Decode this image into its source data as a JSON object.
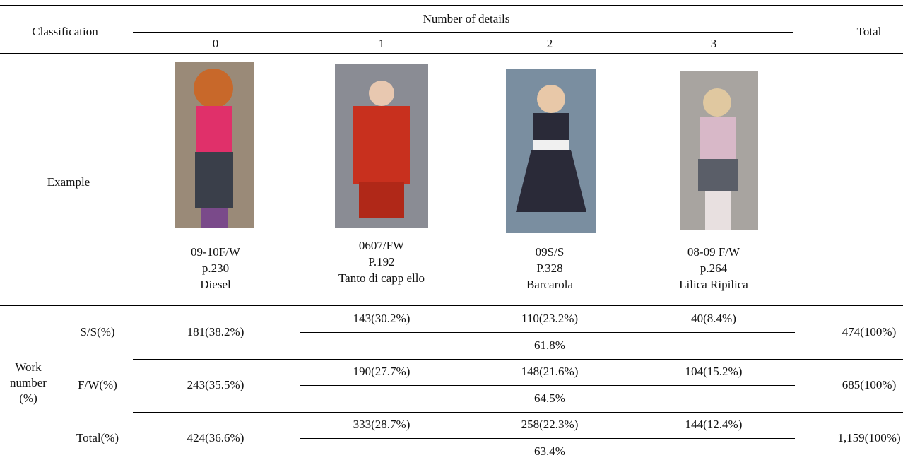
{
  "header": {
    "classification": "Classification",
    "number_of_details": "Number of details",
    "columns": [
      "0",
      "1",
      "2",
      "3"
    ],
    "total": "Total"
  },
  "example": {
    "label": "Example",
    "items": [
      {
        "lines": [
          "09-10F/W",
          "p.230",
          "Diesel"
        ]
      },
      {
        "lines": [
          "0607/FW",
          "P.192",
          "Tanto di capp ello"
        ]
      },
      {
        "lines": [
          "09S/S",
          "P.328",
          "Barcarola"
        ]
      },
      {
        "lines": [
          "08-09 F/W",
          "p.264",
          "Lilica Ripilica"
        ]
      }
    ]
  },
  "work_number": {
    "label_lines": [
      "Work",
      "number",
      "(%)"
    ],
    "rows": [
      {
        "label": "S/S(%)",
        "cells": [
          "181(38.2%)",
          "143(30.2%)",
          "110(23.2%)",
          "40(8.4%)"
        ],
        "combined": "61.8%",
        "total": "474(100%)"
      },
      {
        "label": "F/W(%)",
        "cells": [
          "243(35.5%)",
          "190(27.7%)",
          "148(21.6%)",
          "104(15.2%)"
        ],
        "combined": "64.5%",
        "total": "685(100%)"
      },
      {
        "label": "Total(%)",
        "cells": [
          "424(36.6%)",
          "333(28.7%)",
          "258(22.3%)",
          "144(12.4%)"
        ],
        "combined": "63.4%",
        "total": "1,159(100%)"
      }
    ]
  }
}
